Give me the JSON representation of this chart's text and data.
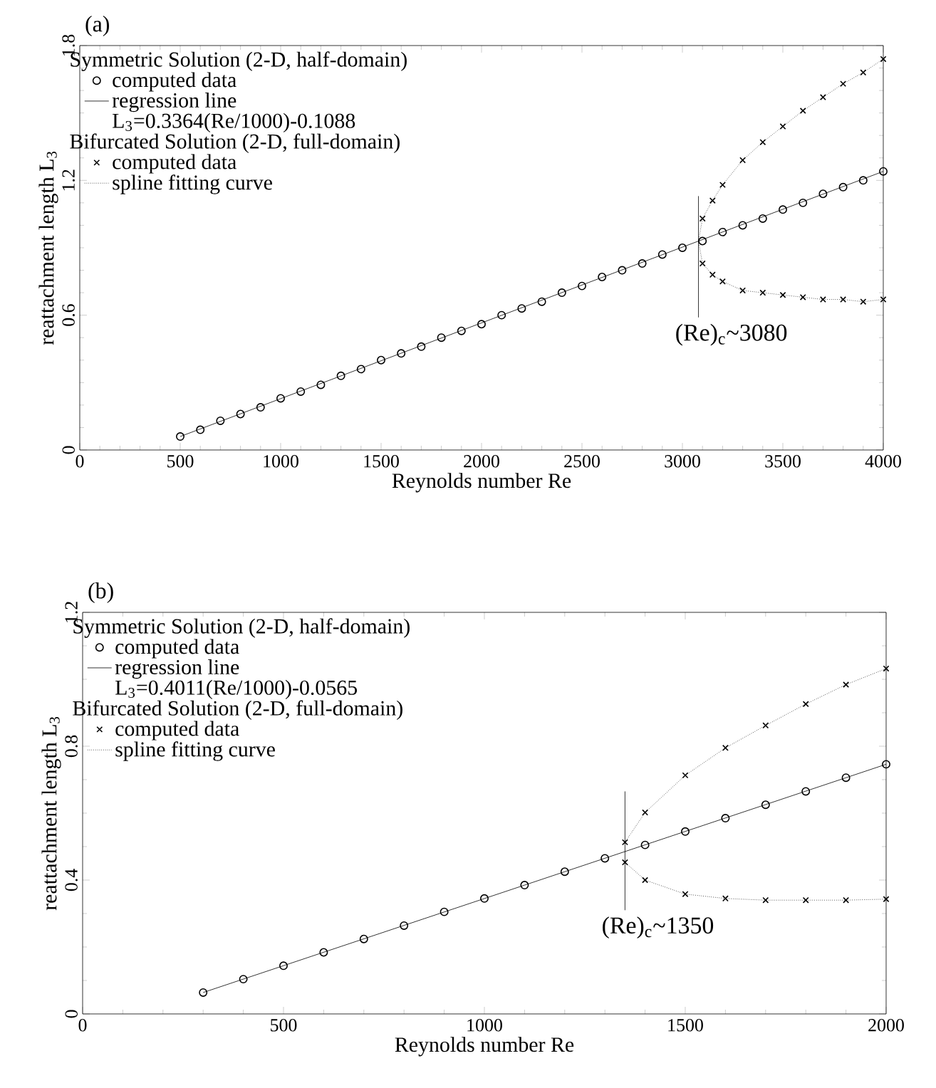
{
  "chart_data": [
    {
      "type": "scatter",
      "title": "(a)",
      "xlabel": "Reynolds number Re",
      "ylabel": "reattachment length L$_{3}$",
      "xlim": [
        0,
        4000
      ],
      "ylim": [
        0,
        1.8
      ],
      "xticks": [
        0,
        500,
        1000,
        1500,
        2000,
        2500,
        3000,
        3500,
        4000
      ],
      "yticks": [
        0,
        0.6,
        1.2,
        1.8
      ],
      "grid": false,
      "legend": "top left",
      "annotations": [
        "Symmetric Solution (2-D, half-domain)",
        "L$_{3}$=0.3364(Re/1000)-0.1088",
        "Bifurcated Solution (2-D, full-domain)",
        {
          "text": "(Re)$_{c}$~3080",
          "x": 3080,
          "y": 0.59
        }
      ],
      "series": [
        {
          "name": "computed data",
          "marker": "circle",
          "color": "#000000",
          "x": [
            500,
            600,
            700,
            800,
            900,
            1000,
            1100,
            1200,
            1300,
            1400,
            1500,
            1600,
            1700,
            1800,
            1900,
            2000,
            2100,
            2200,
            2300,
            2400,
            2500,
            2600,
            2700,
            2800,
            2900,
            3000,
            3100,
            3200,
            3300,
            3400,
            3500,
            3600,
            3700,
            3800,
            3900,
            4000
          ],
          "values": [
            0.06,
            0.09,
            0.13,
            0.16,
            0.19,
            0.23,
            0.26,
            0.29,
            0.33,
            0.36,
            0.4,
            0.43,
            0.46,
            0.5,
            0.53,
            0.56,
            0.6,
            0.63,
            0.66,
            0.7,
            0.73,
            0.77,
            0.8,
            0.83,
            0.87,
            0.9,
            0.93,
            0.97,
            1.0,
            1.03,
            1.07,
            1.1,
            1.14,
            1.17,
            1.2,
            1.24
          ]
        },
        {
          "name": "regression line",
          "type": "line",
          "marker": "none",
          "line_style": "solid",
          "color": "#000000",
          "x": [
            500,
            4000
          ],
          "values": [
            0.06,
            1.24
          ]
        },
        {
          "name": "computed data",
          "marker": "cross",
          "color": "#000000",
          "x": [
            3100,
            3150,
            3200,
            3300,
            3400,
            3500,
            3600,
            3700,
            3800,
            3900,
            4000,
            3100,
            3150,
            3200,
            3300,
            3400,
            3500,
            3600,
            3700,
            3800,
            3900,
            4000
          ],
          "values": [
            1.03,
            1.11,
            1.18,
            1.29,
            1.37,
            1.44,
            1.51,
            1.57,
            1.63,
            1.68,
            1.74,
            0.83,
            0.78,
            0.75,
            0.71,
            0.7,
            0.69,
            0.68,
            0.67,
            0.67,
            0.66,
            0.67
          ]
        },
        {
          "name": "spline fitting curve",
          "type": "line",
          "marker": "none",
          "line_style": "dotted",
          "color": "#000000",
          "x": [
            3080,
            3100,
            3150,
            3200,
            3300,
            3400,
            3500,
            3600,
            3700,
            3800,
            3900,
            4000
          ],
          "values": [
            0.93,
            1.03,
            1.11,
            1.18,
            1.29,
            1.37,
            1.44,
            1.51,
            1.57,
            1.63,
            1.68,
            1.74
          ]
        },
        {
          "type": "line",
          "marker": "none",
          "line_style": "dotted",
          "color": "#000000",
          "x": [
            3080,
            3100,
            3150,
            3200,
            3300,
            3400,
            3500,
            3600,
            3700,
            3800,
            3900,
            4000
          ],
          "values": [
            0.93,
            0.83,
            0.78,
            0.75,
            0.71,
            0.7,
            0.69,
            0.68,
            0.67,
            0.67,
            0.66,
            0.67
          ]
        },
        {
          "type": "line",
          "marker": "none",
          "line_style": "solid",
          "color": "#000000",
          "x": [
            3080,
            3080
          ],
          "values": [
            0.59,
            1.13
          ]
        }
      ]
    },
    {
      "type": "scatter",
      "title": "(b)",
      "xlabel": "Reynolds number Re",
      "ylabel": "reattachment length L$_{3}$",
      "xlim": [
        0,
        2000
      ],
      "ylim": [
        0,
        1.2
      ],
      "xticks": [
        0,
        500,
        1000,
        1500,
        2000
      ],
      "yticks": [
        0,
        0.4,
        0.8,
        1.2
      ],
      "grid": false,
      "legend": "top left",
      "annotations": [
        "Symmetric Solution (2-D, half-domain)",
        "L$_{3}$=0.4011(Re/1000)-0.0565",
        "Bifurcated Solution (2-D, full-domain)",
        {
          "text": "(Re)$_{c}$~1350",
          "x": 1350,
          "y": 0.31
        }
      ],
      "series": [
        {
          "name": "computed data",
          "marker": "circle",
          "color": "#000000",
          "x": [
            300,
            400,
            500,
            600,
            700,
            800,
            900,
            1000,
            1100,
            1200,
            1300,
            1400,
            1500,
            1600,
            1700,
            1800,
            1900,
            2000
          ],
          "values": [
            0.064,
            0.104,
            0.144,
            0.184,
            0.224,
            0.264,
            0.305,
            0.345,
            0.385,
            0.425,
            0.465,
            0.505,
            0.545,
            0.585,
            0.625,
            0.665,
            0.706,
            0.746
          ]
        },
        {
          "name": "regression line",
          "type": "line",
          "marker": "none",
          "line_style": "solid",
          "color": "#000000",
          "x": [
            300,
            2000
          ],
          "values": [
            0.064,
            0.746
          ]
        },
        {
          "name": "computed data",
          "marker": "cross",
          "color": "#000000",
          "x": [
            1350,
            1400,
            1500,
            1600,
            1700,
            1800,
            1900,
            2000,
            1350,
            1400,
            1500,
            1600,
            1700,
            1800,
            1900,
            2000
          ],
          "values": [
            0.513,
            0.602,
            0.713,
            0.795,
            0.862,
            0.926,
            0.984,
            1.032,
            0.453,
            0.4,
            0.358,
            0.345,
            0.34,
            0.34,
            0.34,
            0.343
          ]
        },
        {
          "name": "spline fitting curve",
          "type": "line",
          "marker": "none",
          "line_style": "dotted",
          "color": "#000000",
          "x": [
            1350,
            1400,
            1500,
            1600,
            1700,
            1800,
            1900,
            2000
          ],
          "values": [
            0.513,
            0.602,
            0.713,
            0.795,
            0.862,
            0.926,
            0.984,
            1.032
          ]
        },
        {
          "type": "line",
          "marker": "none",
          "line_style": "dotted",
          "color": "#000000",
          "x": [
            1350,
            1400,
            1500,
            1600,
            1700,
            1800,
            1900,
            2000
          ],
          "values": [
            0.453,
            0.4,
            0.358,
            0.345,
            0.34,
            0.34,
            0.34,
            0.343
          ]
        },
        {
          "type": "line",
          "marker": "none",
          "line_style": "solid",
          "color": "#000000",
          "x": [
            1350,
            1350
          ],
          "values": [
            0.31,
            0.665
          ]
        }
      ]
    }
  ]
}
